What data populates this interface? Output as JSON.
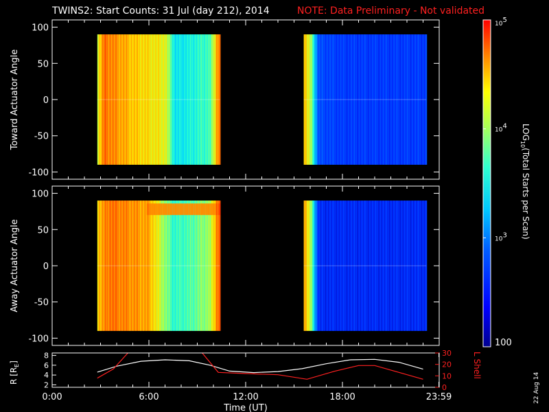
{
  "header": {
    "title": "TWINS2: Start Counts: 31 Jul (day 212), 2014",
    "note": "NOTE: Data Preliminary - Not validated",
    "note_color": "#ff2020"
  },
  "date_stamp": "22 Aug 14",
  "chart_data": [
    {
      "type": "heatmap",
      "ylabel": "Toward Actuator Angle",
      "ylim": [
        -110,
        110
      ],
      "yticks": [
        "100",
        "50",
        "0",
        "-50",
        "-100"
      ],
      "x_range_hours": [
        0,
        24
      ],
      "data_blocks": [
        {
          "start_hour": 2.8,
          "end_hour": 10.4
        },
        {
          "start_hour": 15.6,
          "end_hour": 23.2
        }
      ],
      "log_level_profile_block1": [
        {
          "hour": 2.8,
          "level": 4.1
        },
        {
          "hour": 3.2,
          "level": 4.6
        },
        {
          "hour": 5.0,
          "level": 4.3
        },
        {
          "hour": 7.0,
          "level": 4.1
        },
        {
          "hour": 7.6,
          "level": 3.3
        },
        {
          "hour": 8.5,
          "level": 3.4
        },
        {
          "hour": 9.8,
          "level": 3.6
        },
        {
          "hour": 10.2,
          "level": 4.5
        }
      ],
      "log_level_profile_block2": [
        {
          "hour": 15.6,
          "level": 4.4
        },
        {
          "hour": 16.0,
          "level": 3.9
        },
        {
          "hour": 16.5,
          "level": 2.6
        },
        {
          "hour": 18.0,
          "level": 2.5
        },
        {
          "hour": 23.2,
          "level": 2.5
        }
      ]
    },
    {
      "type": "heatmap",
      "ylabel": "Away Actuator Angle",
      "ylim": [
        -110,
        110
      ],
      "yticks": [
        "100",
        "50",
        "0",
        "-50",
        "-100"
      ],
      "x_range_hours": [
        0,
        24
      ],
      "data_blocks": [
        {
          "start_hour": 2.8,
          "end_hour": 10.4
        },
        {
          "start_hour": 15.6,
          "end_hour": 23.2
        }
      ],
      "log_level_profile_block1": [
        {
          "hour": 2.8,
          "level": 4.3
        },
        {
          "hour": 3.5,
          "level": 4.6
        },
        {
          "hour": 6.0,
          "level": 4.4
        },
        {
          "hour": 7.5,
          "level": 3.5
        },
        {
          "hour": 8.5,
          "level": 3.6
        },
        {
          "hour": 9.8,
          "level": 3.9
        },
        {
          "hour": 10.2,
          "level": 4.6
        }
      ],
      "log_level_profile_block2": [
        {
          "hour": 15.6,
          "level": 4.5
        },
        {
          "hour": 16.0,
          "level": 3.9
        },
        {
          "hour": 16.5,
          "level": 2.4
        },
        {
          "hour": 23.2,
          "level": 2.4
        }
      ],
      "enhanced_band_angle_range": [
        70,
        90
      ]
    },
    {
      "type": "line",
      "xlabel": "Time (UT)",
      "xticks": [
        "0:00",
        "6:00",
        "12:00",
        "18:00",
        "23:59"
      ],
      "xtick_hours": [
        0,
        6,
        12,
        18,
        23.98
      ],
      "left_axis": {
        "label": "R [R",
        "label_sub": "E",
        "label_end": "]",
        "ylim": [
          1.5,
          8.5
        ],
        "yticks": [
          "8",
          "6",
          "4",
          "2"
        ],
        "ytick_values": [
          8,
          6,
          4,
          2
        ],
        "color": "#ffffff"
      },
      "right_axis": {
        "label": "L Shell",
        "ylim": [
          0,
          30
        ],
        "yticks": [
          "30",
          "20",
          "10",
          "0"
        ],
        "ytick_values": [
          30,
          20,
          10,
          0
        ],
        "color": "#ff2020"
      },
      "series": [
        {
          "axis": "left",
          "color": "#ffffff",
          "x": [
            2.8,
            4.0,
            5.5,
            7.0,
            8.5,
            9.8,
            11.0,
            12.5,
            14.0,
            15.5,
            17.0,
            18.5,
            20.0,
            21.5,
            23.0
          ],
          "y": [
            4.6,
            5.8,
            6.8,
            7.1,
            6.9,
            6.0,
            4.8,
            4.5,
            4.7,
            5.3,
            6.3,
            7.1,
            7.2,
            6.6,
            5.2
          ]
        },
        {
          "axis": "right",
          "color": "#ff2020",
          "segments": [
            {
              "x": [
                2.8,
                3.8,
                4.7
              ],
              "y": [
                8,
                16,
                30
              ]
            },
            {
              "x": [
                9.3,
                10.3,
                12.0,
                14.0,
                15.8,
                17.5,
                19.0,
                20.0,
                21.5,
                23.0
              ],
              "y": [
                30,
                13,
                12,
                11,
                7,
                14,
                19,
                19,
                13,
                7
              ]
            }
          ]
        }
      ]
    }
  ],
  "colorbar": {
    "label_prefix": "LOG",
    "label_sub": "10",
    "label_suffix": "(Total Starts per Scan)",
    "ticks": [
      {
        "base": "10",
        "exp": "5",
        "level": 5
      },
      {
        "base": "10",
        "exp": "4",
        "level": 4
      },
      {
        "base": "10",
        "exp": "3",
        "level": 3
      },
      {
        "base": "100",
        "exp": "",
        "level": 2
      }
    ],
    "range": [
      2,
      5
    ]
  }
}
